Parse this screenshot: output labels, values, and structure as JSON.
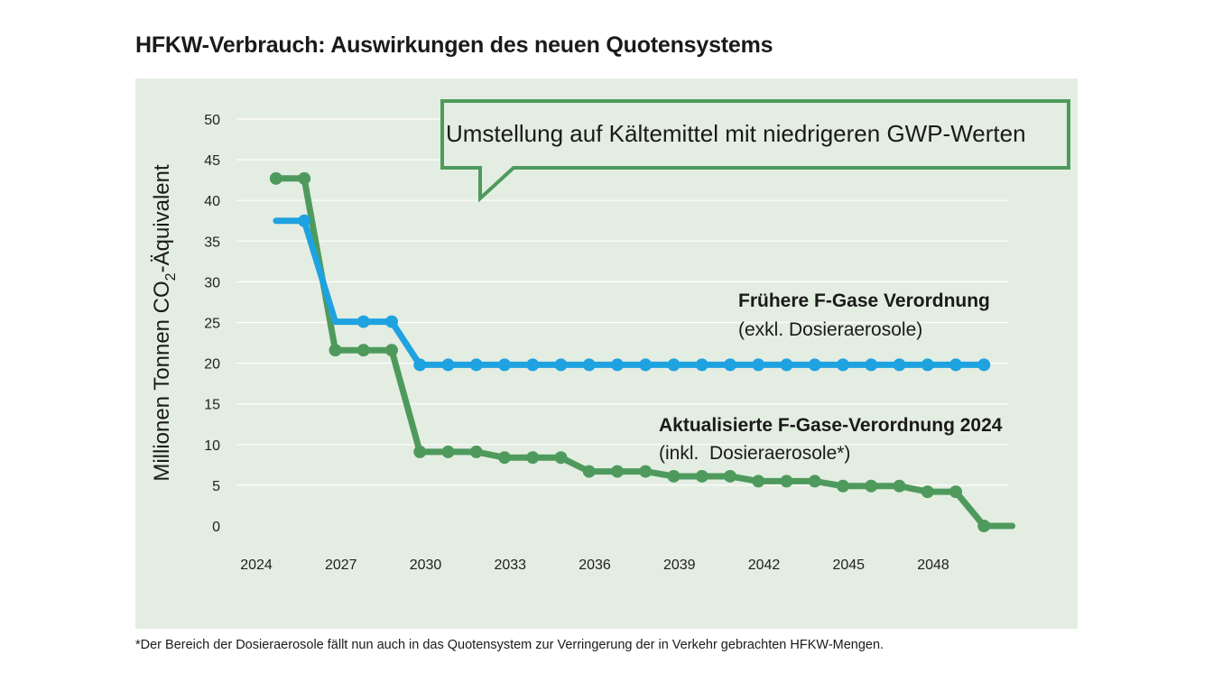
{
  "title": "HFKW-Verbrauch: Auswirkungen des neuen Quotensystems",
  "footnote": "*Der Bereich der Dosieraerosole fällt nun auch in das Quotensystem zur Verringerung der in Verkehr gebrachten HFKW-Mengen.",
  "callout": "Umstellung auf Kältemittel mit niedrigeren GWP-Werten",
  "colors": {
    "panel": "#e4ede2",
    "blue": "#1fa2e0",
    "green": "#4e9a5d",
    "callout_border": "#4e9a5d"
  },
  "chart_data": {
    "type": "line",
    "ylabel": {
      "main": "Millionen Tonnen CO",
      "sub": "2",
      "rest": "-Äquivalent"
    },
    "xlabel": "",
    "ylim": [
      0,
      50
    ],
    "yticks": [
      0,
      5,
      10,
      15,
      20,
      25,
      30,
      35,
      40,
      45,
      50
    ],
    "xticks": [
      2024,
      2027,
      2030,
      2033,
      2036,
      2039,
      2042,
      2045,
      2048
    ],
    "grid": true,
    "series": [
      {
        "key": "old",
        "name": "Frühere F-Gase Verordnung",
        "note": "(exkl. Dosieraerosole)",
        "color": "#1fa2e0",
        "x": [
          2024.7,
          2025.7,
          2026.8,
          2027.8,
          2028.8,
          2029.8,
          2030.8,
          2031.8,
          2032.8,
          2033.8,
          2034.8,
          2035.8,
          2036.8,
          2037.8,
          2038.8,
          2039.8,
          2040.8,
          2041.8,
          2042.8,
          2043.8,
          2044.8,
          2045.8,
          2046.8,
          2047.8,
          2048.8,
          2049.8
        ],
        "y": [
          37.5,
          37.5,
          25.1,
          25.1,
          25.1,
          19.8,
          19.8,
          19.8,
          19.8,
          19.8,
          19.8,
          19.8,
          19.8,
          19.8,
          19.8,
          19.8,
          19.8,
          19.8,
          19.8,
          19.8,
          19.8,
          19.8,
          19.8,
          19.8,
          19.8,
          19.8
        ],
        "markers": [
          false,
          true,
          false,
          true,
          true,
          true,
          true,
          true,
          true,
          true,
          true,
          true,
          true,
          true,
          true,
          true,
          true,
          true,
          true,
          true,
          true,
          true,
          true,
          true,
          true,
          true
        ]
      },
      {
        "key": "new",
        "name": "Aktualisierte F-Gase-Verordnung 2024",
        "note": "(inkl.  Dosieraerosole*)",
        "color": "#4e9a5d",
        "x": [
          2024.7,
          2025.7,
          2026.8,
          2027.8,
          2028.8,
          2029.8,
          2030.8,
          2031.8,
          2032.8,
          2033.8,
          2034.8,
          2035.8,
          2036.8,
          2037.8,
          2038.8,
          2039.8,
          2040.8,
          2041.8,
          2042.8,
          2043.8,
          2044.8,
          2045.8,
          2046.8,
          2047.8,
          2048.8,
          2049.8,
          2050.8
        ],
        "y": [
          42.7,
          42.7,
          21.6,
          21.6,
          21.6,
          9.1,
          9.1,
          9.1,
          8.4,
          8.4,
          8.4,
          6.7,
          6.7,
          6.7,
          6.1,
          6.1,
          6.1,
          5.5,
          5.5,
          5.5,
          4.9,
          4.9,
          4.9,
          4.2,
          4.2,
          0,
          0
        ],
        "markers": [
          true,
          true,
          true,
          true,
          true,
          true,
          true,
          true,
          true,
          true,
          true,
          true,
          true,
          true,
          true,
          true,
          true,
          true,
          true,
          true,
          true,
          true,
          true,
          true,
          true,
          true,
          false
        ]
      }
    ]
  }
}
